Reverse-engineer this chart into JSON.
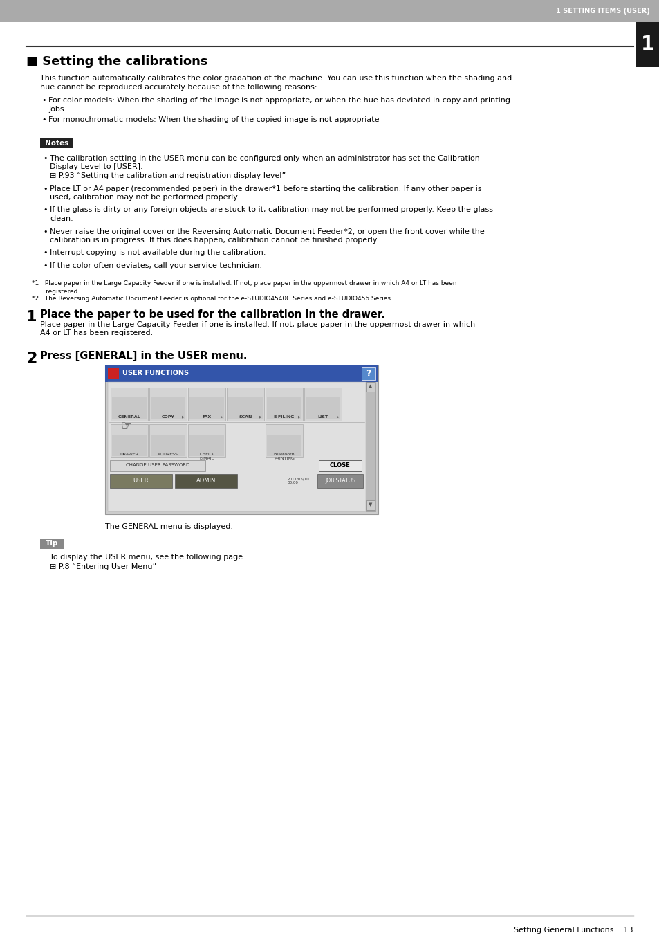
{
  "page_bg": "#ffffff",
  "header_bg": "#aaaaaa",
  "header_text": "1 SETTING ITEMS (USER)",
  "header_text_color": "#ffffff",
  "tab_bg": "#1a1a1a",
  "tab_text": "1",
  "tab_text_color": "#ffffff",
  "section_title": "■ Setting the calibrations",
  "body_text_size": 8.0,
  "small_text_size": 6.5,
  "intro_line1": "This function automatically calibrates the color gradation of the machine. You can use this function when the shading and",
  "intro_line2": "hue cannot be reproduced accurately because of the following reasons:",
  "bullet1_line1": "For color models: When the shading of the image is not appropriate, or when the hue has deviated in copy and printing",
  "bullet1_line2": "jobs",
  "bullet2": "For monochromatic models: When the shading of the copied image is not appropriate",
  "notes_label": "Notes",
  "notes_bg": "#222222",
  "notes_text_color": "#ffffff",
  "note1_line1": "The calibration setting in the USER menu can be configured only when an administrator has set the Calibration",
  "note1_line2": "Display Level to [USER].",
  "note1_line3": "⊞ P.93 “Setting the calibration and registration display level”",
  "note2_line1": "Place LT or A4 paper (recommended paper) in the drawer*1 before starting the calibration. If any other paper is",
  "note2_line2": "used, calibration may not be performed properly.",
  "note3_line1": "If the glass is dirty or any foreign objects are stuck to it, calibration may not be performed properly. Keep the glass",
  "note3_line2": "clean.",
  "note4_line1": "Never raise the original cover or the Reversing Automatic Document Feeder*2, or open the front cover while the",
  "note4_line2": "calibration is in progress. If this does happen, calibration cannot be finished properly.",
  "note5": "Interrupt copying is not available during the calibration.",
  "note6": "If the color often deviates, call your service technician.",
  "fn1_line1": "*1   Place paper in the Large Capacity Feeder if one is installed. If not, place paper in the uppermost drawer in which A4 or LT has been",
  "fn1_line2": "       registered.",
  "fn2": "*2   The Reversing Automatic Document Feeder is optional for the e-STUDIO4540C Series and e-STUDIO456 Series.",
  "step1_num": "1",
  "step1_title": "Place the paper to be used for the calibration in the drawer.",
  "step1_body1": "Place paper in the Large Capacity Feeder if one is installed. If not, place paper in the uppermost drawer in which",
  "step1_body2": "A4 or LT has been registered.",
  "step2_num": "2",
  "step2_title": "Press [GENERAL] in the USER menu.",
  "step2_caption": "The GENERAL menu is displayed.",
  "tip_label": "Tip",
  "tip_bg": "#888888",
  "tip_line1": "To display the USER menu, see the following page:",
  "tip_line2": "⊞ P.8 “Entering User Menu”",
  "footer_text": "Setting General Functions    13",
  "line_color": "#333333"
}
